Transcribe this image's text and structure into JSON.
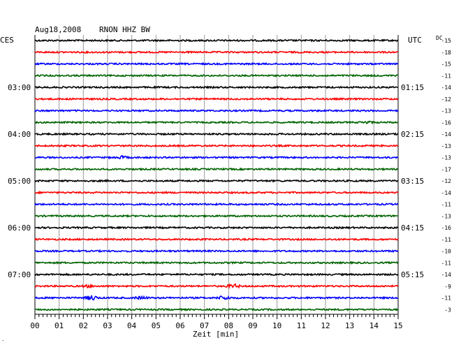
{
  "header": {
    "date": "Aug18,2008",
    "station": "RNON HHZ BW"
  },
  "chart_data": {
    "type": "line",
    "left_label": "CES",
    "right_label": "UTC",
    "dc_label": "DC",
    "xlabel": "Zeit [min]",
    "xlim": [
      0,
      15
    ],
    "x_ticks": [
      "00",
      "01",
      "02",
      "03",
      "04",
      "05",
      "06",
      "07",
      "08",
      "09",
      "10",
      "11",
      "12",
      "13",
      "14",
      "15"
    ],
    "colors": [
      "#000000",
      "#ff0000",
      "#0000ff",
      "#006400"
    ],
    "series": [
      {
        "left": "",
        "right": "",
        "dc": "-15"
      },
      {
        "left": "",
        "right": "",
        "dc": "-18"
      },
      {
        "left": "",
        "right": "",
        "dc": "-15"
      },
      {
        "left": "",
        "right": "",
        "dc": "-11"
      },
      {
        "left": "03:00",
        "right": "01:15",
        "dc": "-14"
      },
      {
        "left": "",
        "right": "",
        "dc": "-12"
      },
      {
        "left": "",
        "right": "",
        "dc": "-13"
      },
      {
        "left": "",
        "right": "",
        "dc": "-16",
        "events": [
          {
            "t": 13.7,
            "amp": 1.2
          }
        ]
      },
      {
        "left": "04:00",
        "right": "02:15",
        "dc": "-14"
      },
      {
        "left": "",
        "right": "",
        "dc": "-13"
      },
      {
        "left": "",
        "right": "",
        "dc": "-13",
        "events": [
          {
            "t": 3.6,
            "amp": 1.5
          }
        ]
      },
      {
        "left": "",
        "right": "",
        "dc": "-17"
      },
      {
        "left": "05:00",
        "right": "03:15",
        "dc": "-12"
      },
      {
        "left": "",
        "right": "",
        "dc": "-14"
      },
      {
        "left": "",
        "right": "",
        "dc": "-11"
      },
      {
        "left": "",
        "right": "",
        "dc": "-13"
      },
      {
        "left": "06:00",
        "right": "04:15",
        "dc": "-16"
      },
      {
        "left": "",
        "right": "",
        "dc": "-11"
      },
      {
        "left": "",
        "right": "",
        "dc": "-10"
      },
      {
        "left": "",
        "right": "",
        "dc": "-11"
      },
      {
        "left": "07:00",
        "right": "05:15",
        "dc": "-14"
      },
      {
        "left": "",
        "right": "",
        "dc": "-9",
        "events": [
          {
            "t": 2.2,
            "amp": 1.2
          },
          {
            "t": 8.2,
            "amp": 2.6
          }
        ]
      },
      {
        "left": "",
        "right": "",
        "dc": "-11",
        "events": [
          {
            "t": 2.35,
            "amp": 3.2
          },
          {
            "t": 4.4,
            "amp": 1.6
          },
          {
            "t": 7.8,
            "amp": 2.6
          }
        ]
      },
      {
        "left": "",
        "right": "",
        "dc": "-3"
      }
    ]
  }
}
